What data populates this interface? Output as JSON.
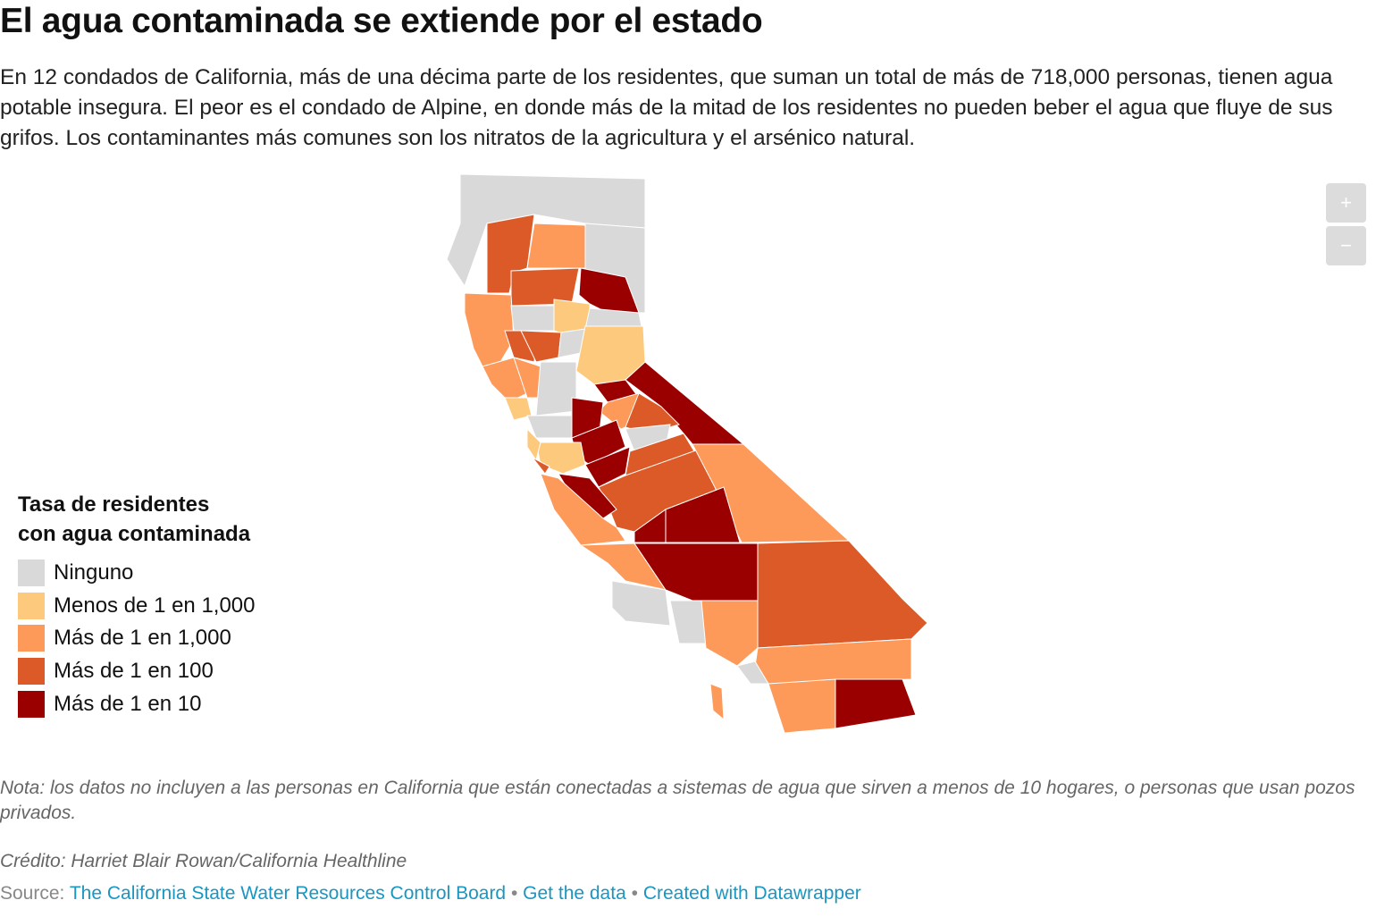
{
  "header": {
    "title": "El agua contaminada se extiende por el estado",
    "description": "En 12 condados de California, más de una décima parte de los residentes, que suman un total de más de 718,000 personas, tienen agua potable insegura. El peor es el condado de Alpine, en donde más de la mitad de los residentes no pueden beber el agua que fluye de sus grifos. Los contaminantes más comunes son los nitratos de la agricultura y el arsénico natural."
  },
  "legend": {
    "title": [
      "Tasa de residentes",
      "con agua contaminada"
    ],
    "items": [
      {
        "label": "Ninguno",
        "color": "#d9d9d9"
      },
      {
        "label": "Menos de 1 en 1,000",
        "color": "#fdc97d"
      },
      {
        "label": "Más de 1 en 1,000",
        "color": "#fd9a5a"
      },
      {
        "label": "Más de 1 en 100",
        "color": "#dc5a27"
      },
      {
        "label": "Más de 1 en 10",
        "color": "#9b0000"
      }
    ]
  },
  "zoom": [
    "+",
    "−"
  ],
  "footer": {
    "note": "Nota: los datos no incluyen a las personas en California que están conectadas a sistemas de agua que sirven a menos de 10 hogares, o personas que usan pozos privados.",
    "credit": "Crédito: Harriet Blair Rowan/California Healthline",
    "source_label": "Source:",
    "separator": "•",
    "links": [
      "The California State Water Resources Control Board",
      "Get the data",
      "Created with Datawrapper"
    ]
  }
}
